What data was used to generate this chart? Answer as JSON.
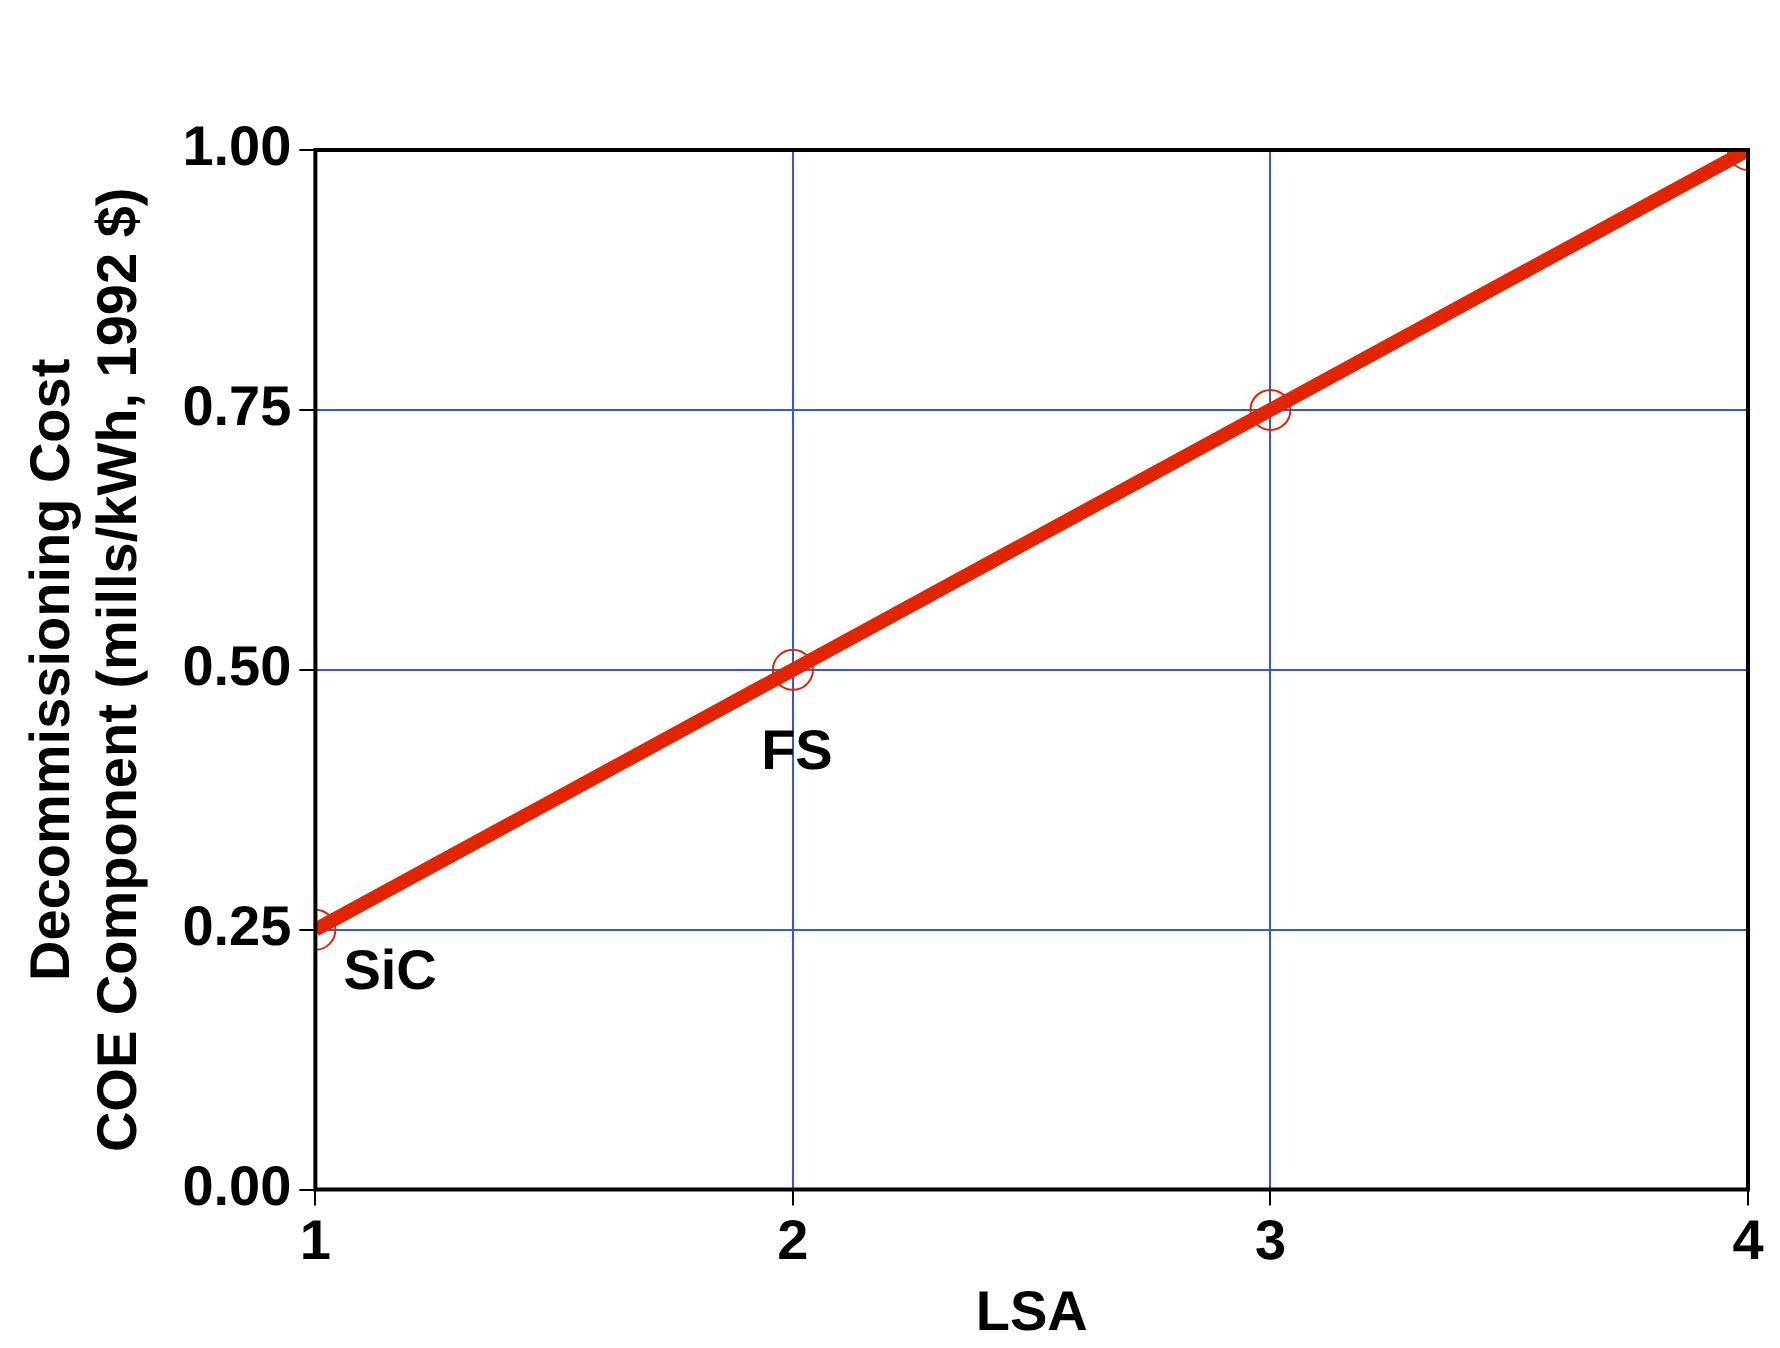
{
  "chart_data": {
    "type": "line",
    "xlabel": "LSA",
    "ylabel": "Decommissioning Cost\nCOE Component (mills/kWh, 1992 $)",
    "x": [
      1,
      2,
      3,
      4
    ],
    "series": [
      {
        "color": "#e32400",
        "values": [
          0.25,
          0.5,
          0.75,
          1.0
        ]
      }
    ],
    "xlim": [
      1,
      4
    ],
    "xticks": [
      1,
      2,
      3,
      4
    ],
    "ylim": [
      0,
      1
    ],
    "yticks": [
      {
        "value": 0,
        "label": "0.00"
      },
      {
        "value": 0.25,
        "label": "0.25"
      },
      {
        "value": 0.5,
        "label": "0.50"
      },
      {
        "value": 0.75,
        "label": "0.75"
      },
      {
        "value": 1,
        "label": "1.00"
      }
    ],
    "grid": true,
    "legend": false,
    "marker": "circle",
    "line_style": "solid",
    "annotations": [
      {
        "text": "SiC",
        "x": 1,
        "y": 0.25
      },
      {
        "text": "FS",
        "x": 2,
        "y": 0.5
      }
    ]
  }
}
